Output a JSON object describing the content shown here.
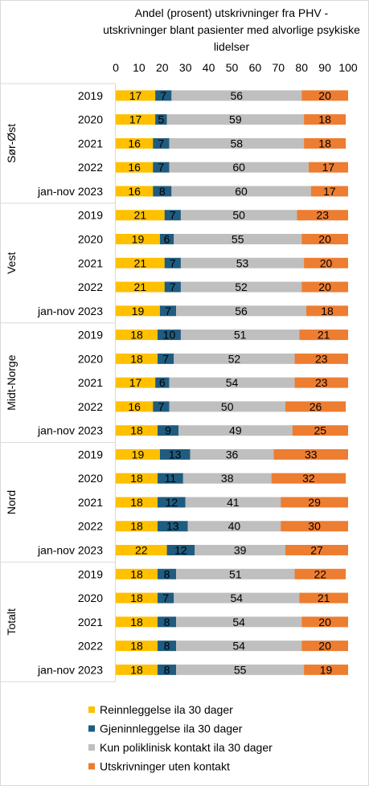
{
  "chart_data": {
    "type": "bar",
    "orientation": "horizontal",
    "stacked": true,
    "title": "Andel (prosent) utskrivninger fra PHV - utskrivninger blant pasienter med alvorlige psykiske lidelser",
    "title_lines": [
      "Andel (prosent) utskrivninger fra PHV -",
      "utskrivninger blant pasienter med alvorlige psykiske",
      "lidelser"
    ],
    "xlim": [
      0,
      100
    ],
    "x_ticks": [
      "0",
      "10",
      "20",
      "30",
      "40",
      "50",
      "60",
      "70",
      "80",
      "90",
      "100"
    ],
    "grid": false,
    "legend_position": "bottom",
    "series": [
      {
        "name": "Reinnleggelse ila 30 dager",
        "color": "#FFC000"
      },
      {
        "name": "Gjeninnleggelse ila 30 dager",
        "color": "#1F5C7F"
      },
      {
        "name": "Kun poliklinisk kontakt ila 30 dager",
        "color": "#BFBFBF"
      },
      {
        "name": "Utskrivninger uten kontakt",
        "color": "#ED7D31"
      }
    ],
    "groups": [
      {
        "name": "Sør-Øst",
        "rows": [
          {
            "label": "2019",
            "values": [
              17,
              7,
              56,
              20
            ]
          },
          {
            "label": "2020",
            "values": [
              17,
              5,
              59,
              18
            ]
          },
          {
            "label": "2021",
            "values": [
              16,
              7,
              58,
              18
            ]
          },
          {
            "label": "2022",
            "values": [
              16,
              7,
              60,
              17
            ]
          },
          {
            "label": "jan-nov 2023",
            "values": [
              16,
              8,
              60,
              17
            ]
          }
        ]
      },
      {
        "name": "Vest",
        "rows": [
          {
            "label": "2019",
            "values": [
              21,
              7,
              50,
              23
            ]
          },
          {
            "label": "2020",
            "values": [
              19,
              6,
              55,
              20
            ]
          },
          {
            "label": "2021",
            "values": [
              21,
              7,
              53,
              20
            ]
          },
          {
            "label": "2022",
            "values": [
              21,
              7,
              52,
              20
            ]
          },
          {
            "label": "jan-nov 2023",
            "values": [
              19,
              7,
              56,
              18
            ]
          }
        ]
      },
      {
        "name": "Midt-Norge",
        "rows": [
          {
            "label": "2019",
            "values": [
              18,
              10,
              51,
              21
            ]
          },
          {
            "label": "2020",
            "values": [
              18,
              7,
              52,
              23
            ]
          },
          {
            "label": "2021",
            "values": [
              17,
              6,
              54,
              23
            ]
          },
          {
            "label": "2022",
            "values": [
              16,
              7,
              50,
              26
            ]
          },
          {
            "label": "jan-nov 2023",
            "values": [
              18,
              9,
              49,
              25
            ]
          }
        ]
      },
      {
        "name": "Nord",
        "rows": [
          {
            "label": "2019",
            "values": [
              19,
              13,
              36,
              33
            ]
          },
          {
            "label": "2020",
            "values": [
              18,
              11,
              38,
              32
            ]
          },
          {
            "label": "2021",
            "values": [
              18,
              12,
              41,
              29
            ]
          },
          {
            "label": "2022",
            "values": [
              18,
              13,
              40,
              30
            ]
          },
          {
            "label": "jan-nov 2023",
            "values": [
              22,
              12,
              39,
              27
            ]
          }
        ]
      },
      {
        "name": "Totalt",
        "rows": [
          {
            "label": "2019",
            "values": [
              18,
              8,
              51,
              22
            ]
          },
          {
            "label": "2020",
            "values": [
              18,
              7,
              54,
              21
            ]
          },
          {
            "label": "2021",
            "values": [
              18,
              8,
              54,
              20
            ]
          },
          {
            "label": "2022",
            "values": [
              18,
              8,
              54,
              20
            ]
          },
          {
            "label": "jan-nov 2023",
            "values": [
              18,
              8,
              55,
              19
            ]
          }
        ]
      }
    ]
  }
}
